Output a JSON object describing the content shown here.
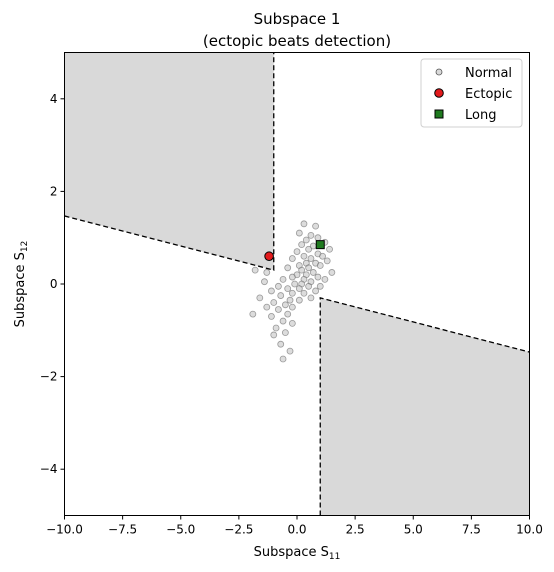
{
  "chart_data": {
    "type": "scatter",
    "title": "Subspace 1",
    "subtitle": "(ectopic beats detection)",
    "xlabel": {
      "base": "Subspace S",
      "sub": "11"
    },
    "ylabel": {
      "base": "Subspace S",
      "sub": "12"
    },
    "xlim": [
      -10,
      10
    ],
    "ylim": [
      -5,
      5
    ],
    "xticks": [
      -10,
      -7.5,
      -5,
      -2.5,
      0,
      2.5,
      5,
      7.5,
      10
    ],
    "xtick_labels": [
      "−10.0",
      "−7.5",
      "−5.0",
      "−2.5",
      "0.0",
      "2.5",
      "5.0",
      "7.5",
      "10.0"
    ],
    "yticks": [
      4,
      2,
      0,
      -2,
      -4
    ],
    "ytick_labels": [
      "4",
      "2",
      "0",
      "−2",
      "−4"
    ],
    "grid": false,
    "legend_position": "top-right",
    "regions": [
      {
        "fill": "#d9d9d9",
        "polygon": [
          [
            -10,
            5
          ],
          [
            -1,
            5
          ],
          [
            -1,
            0.3
          ],
          [
            -10,
            1.47
          ]
        ]
      },
      {
        "fill": "#d9d9d9",
        "polygon": [
          [
            1,
            -5
          ],
          [
            10,
            -5
          ],
          [
            10,
            -1.47
          ],
          [
            1,
            -0.3
          ]
        ]
      }
    ],
    "boundaries": [
      [
        [
          -10,
          1.47
        ],
        [
          -1,
          0.3
        ],
        [
          -1,
          5
        ]
      ],
      [
        [
          1,
          -5
        ],
        [
          1,
          -0.3
        ],
        [
          10,
          -1.47
        ]
      ]
    ],
    "series": [
      {
        "name": "Normal",
        "marker": "circle",
        "color": "#bfbfbf",
        "edgecolor": "#555555",
        "points": [
          [
            0.3,
            1.3
          ],
          [
            0.8,
            1.25
          ],
          [
            0.1,
            1.1
          ],
          [
            0.6,
            1.05
          ],
          [
            0.9,
            1.0
          ],
          [
            0.4,
            0.95
          ],
          [
            1.2,
            0.9
          ],
          [
            0.2,
            0.85
          ],
          [
            0.7,
            0.82
          ],
          [
            1.4,
            0.75
          ],
          [
            0.5,
            0.75
          ],
          [
            0.0,
            0.7
          ],
          [
            0.9,
            0.65
          ],
          [
            1.1,
            0.6
          ],
          [
            0.3,
            0.6
          ],
          [
            -0.2,
            0.55
          ],
          [
            0.6,
            0.55
          ],
          [
            1.3,
            0.5
          ],
          [
            0.4,
            0.45
          ],
          [
            0.8,
            0.45
          ],
          [
            0.1,
            0.4
          ],
          [
            1.0,
            0.4
          ],
          [
            -0.4,
            0.35
          ],
          [
            0.5,
            0.35
          ],
          [
            0.2,
            0.3
          ],
          [
            1.5,
            0.25
          ],
          [
            0.7,
            0.25
          ],
          [
            -1.8,
            0.3
          ],
          [
            -1.3,
            0.25
          ],
          [
            0.0,
            0.2
          ],
          [
            0.4,
            0.2
          ],
          [
            0.9,
            0.15
          ],
          [
            -0.2,
            0.15
          ],
          [
            1.2,
            0.1
          ],
          [
            0.3,
            0.1
          ],
          [
            -0.6,
            0.1
          ],
          [
            -1.4,
            0.05
          ],
          [
            0.6,
            0.05
          ],
          [
            -0.1,
            0.0
          ],
          [
            0.2,
            0.0
          ],
          [
            -0.8,
            -0.05
          ],
          [
            0.5,
            -0.05
          ],
          [
            1.0,
            -0.05
          ],
          [
            -0.4,
            -0.1
          ],
          [
            0.1,
            -0.1
          ],
          [
            -1.1,
            -0.15
          ],
          [
            0.8,
            -0.15
          ],
          [
            -0.2,
            -0.2
          ],
          [
            0.3,
            -0.2
          ],
          [
            -0.7,
            -0.25
          ],
          [
            -1.6,
            -0.3
          ],
          [
            0.6,
            -0.3
          ],
          [
            -0.3,
            -0.35
          ],
          [
            0.1,
            -0.35
          ],
          [
            -1.0,
            -0.4
          ],
          [
            -0.5,
            -0.45
          ],
          [
            -1.3,
            -0.5
          ],
          [
            -0.2,
            -0.5
          ],
          [
            -0.8,
            -0.55
          ],
          [
            -1.9,
            -0.65
          ],
          [
            -0.4,
            -0.65
          ],
          [
            -1.1,
            -0.7
          ],
          [
            -0.6,
            -0.8
          ],
          [
            -0.2,
            -0.85
          ],
          [
            -0.9,
            -0.95
          ],
          [
            -0.5,
            -1.05
          ],
          [
            -1.0,
            -1.1
          ],
          [
            -0.7,
            -1.3
          ],
          [
            -0.3,
            -1.45
          ],
          [
            -0.6,
            -1.62
          ]
        ]
      },
      {
        "name": "Ectopic",
        "marker": "circle",
        "color": "#e31a1c",
        "edgecolor": "#000000",
        "points": [
          [
            -1.2,
            0.6
          ]
        ]
      },
      {
        "name": "Long",
        "marker": "square",
        "color": "#1f7a1f",
        "edgecolor": "#000000",
        "points": [
          [
            1.0,
            0.85
          ]
        ]
      }
    ]
  }
}
